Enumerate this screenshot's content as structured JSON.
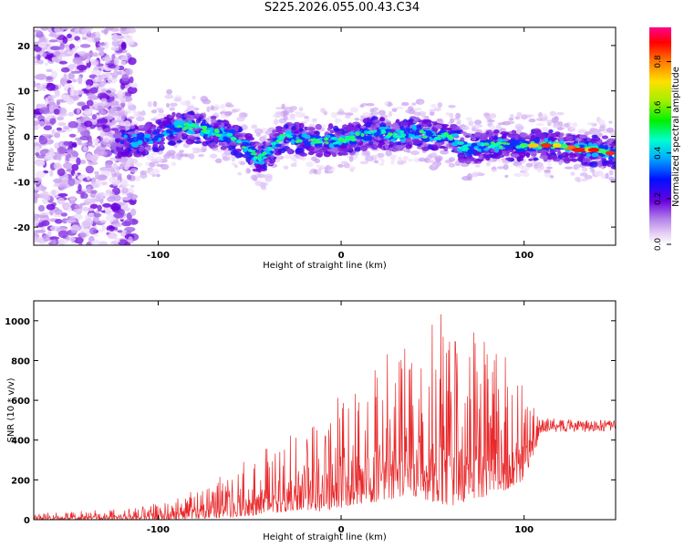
{
  "chart_data": [
    {
      "type": "heatmap",
      "title": "S225.2026.055.00.43.C34",
      "xlabel": "Height of straight line (km)",
      "ylabel": "Frequency (Hz)",
      "xlim": [
        -168,
        150
      ],
      "ylim": [
        -24,
        24
      ],
      "xticks": [
        -100,
        0,
        100
      ],
      "yticks": [
        -20,
        -10,
        0,
        10,
        20
      ],
      "colorbar": {
        "label": "Normalized spectral amplitude",
        "range": [
          0.0,
          0.95
        ],
        "ticks": [
          0.0,
          0.2,
          0.4,
          0.6,
          0.8
        ]
      },
      "ridge": {
        "x": [
          -120,
          -110,
          -100,
          -90,
          -80,
          -70,
          -60,
          -50,
          -45,
          -40,
          -35,
          -30,
          -20,
          -10,
          0,
          10,
          20,
          30,
          40,
          50,
          60,
          65,
          70,
          80,
          90,
          100,
          110,
          120,
          130,
          140,
          150
        ],
        "y": [
          -1,
          -1,
          0,
          2,
          2,
          1,
          0,
          -3,
          -5,
          -4,
          -1,
          0,
          -1,
          -1,
          -1,
          0,
          1,
          0,
          1,
          0,
          0,
          -2,
          -3,
          -2,
          -2,
          -2,
          -2,
          -2,
          -3,
          -3,
          -4
        ]
      }
    },
    {
      "type": "line",
      "title": "",
      "xlabel": "Height of straight line (km)",
      "ylabel": "SNR (10 * v/v)",
      "xlim": [
        -168,
        150
      ],
      "ylim": [
        0,
        1100
      ],
      "xticks": [
        -100,
        0,
        100
      ],
      "yticks": [
        0,
        200,
        400,
        600,
        800,
        1000
      ],
      "color": "#e8282a",
      "envelope": {
        "x": [
          -168,
          -110,
          -100,
          -90,
          -80,
          -70,
          -60,
          -50,
          -40,
          -30,
          -20,
          -10,
          0,
          10,
          20,
          30,
          40,
          50,
          60,
          70,
          80,
          90,
          100,
          110,
          120,
          130,
          140,
          150
        ],
        "low": [
          0,
          0,
          0,
          0,
          5,
          10,
          10,
          20,
          30,
          40,
          50,
          40,
          60,
          80,
          90,
          100,
          120,
          90,
          60,
          90,
          120,
          150,
          200,
          440,
          440,
          440,
          440,
          440
        ],
        "high": [
          35,
          60,
          90,
          110,
          150,
          190,
          260,
          310,
          380,
          440,
          500,
          530,
          640,
          700,
          800,
          880,
          900,
          1100,
          1000,
          1000,
          900,
          850,
          650,
          510,
          510,
          500,
          500,
          500
        ]
      }
    }
  ]
}
